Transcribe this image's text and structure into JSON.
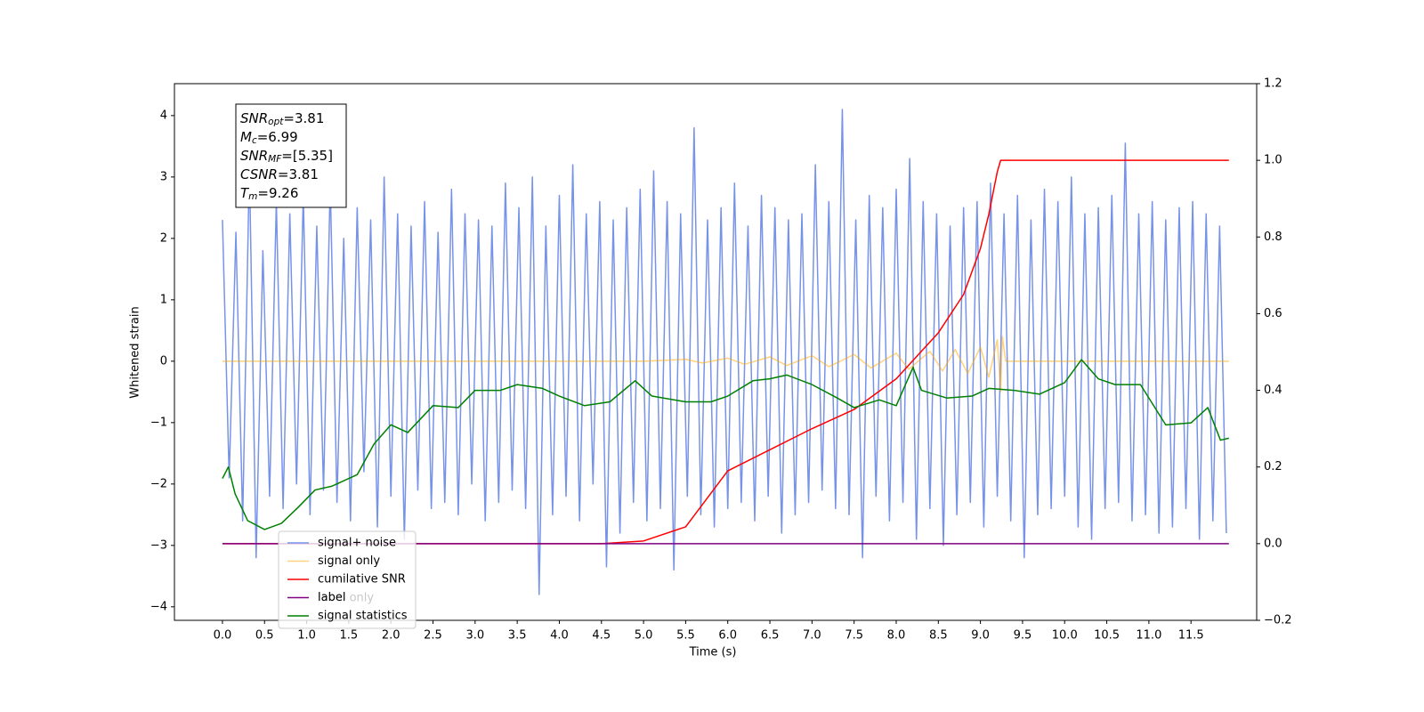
{
  "chart_data": {
    "type": "line",
    "xlabel": "Time (s)",
    "ylabel": "Whitened strain",
    "xlim": [
      -0.57,
      12.28
    ],
    "ylim": [
      -4.22,
      4.52
    ],
    "y2lim": [
      -0.2,
      1.2
    ],
    "xticks": [
      {
        "value": 0,
        "label": "0.0"
      },
      0.5,
      {
        "value": 1,
        "label": "1.0"
      },
      1.5,
      {
        "value": 2,
        "label": "2.0"
      },
      2.5,
      {
        "value": 3,
        "label": "3.0"
      },
      3.5,
      {
        "value": 4,
        "label": "4.0"
      },
      4.5,
      {
        "value": 5,
        "label": "5.0"
      },
      5.5,
      {
        "value": 6,
        "label": "6.0"
      },
      6.5,
      {
        "value": 7,
        "label": "7.0"
      },
      7.5,
      {
        "value": 8,
        "label": "8.0"
      },
      8.5,
      {
        "value": 9,
        "label": "9.0"
      },
      9.5,
      {
        "value": 10,
        "label": "10.0"
      },
      10.5,
      {
        "value": 11,
        "label": "11.0"
      },
      11.5
    ],
    "yticks": [
      {
        "value": -4,
        "label": "−4"
      },
      {
        "value": -3,
        "label": "−3"
      },
      {
        "value": -2,
        "label": "−2"
      },
      {
        "value": -1,
        "label": "−1"
      },
      0,
      1,
      2,
      3,
      4
    ],
    "y2ticks": [
      {
        "value": -0.2,
        "label": "−0.2"
      },
      {
        "value": 0,
        "label": "0.0"
      },
      0.2,
      0.4,
      0.6,
      0.8,
      {
        "value": 1,
        "label": "1.0"
      },
      1.2
    ],
    "series": [
      {
        "name": "signal+ noise",
        "color": "#7793e8",
        "x": [
          0,
          0.08,
          0.16,
          0.24,
          0.32,
          0.4,
          0.48,
          0.56,
          0.64,
          0.72,
          0.8,
          0.88,
          0.96,
          1.04,
          1.12,
          1.2,
          1.28,
          1.36,
          1.44,
          1.52,
          1.6,
          1.68,
          1.76,
          1.84,
          1.92,
          2,
          2.08,
          2.16,
          2.24,
          2.32,
          2.4,
          2.48,
          2.56,
          2.64,
          2.72,
          2.8,
          2.88,
          2.96,
          3.04,
          3.12,
          3.2,
          3.28,
          3.36,
          3.44,
          3.52,
          3.6,
          3.68,
          3.76,
          3.84,
          3.92,
          4,
          4.08,
          4.16,
          4.24,
          4.32,
          4.4,
          4.48,
          4.56,
          4.64,
          4.72,
          4.8,
          4.88,
          4.96,
          5.04,
          5.12,
          5.2,
          5.28,
          5.36,
          5.44,
          5.52,
          5.6,
          5.68,
          5.76,
          5.84,
          5.92,
          6,
          6.08,
          6.16,
          6.24,
          6.32,
          6.4,
          6.48,
          6.56,
          6.64,
          6.72,
          6.8,
          6.88,
          6.96,
          7.04,
          7.12,
          7.2,
          7.28,
          7.36,
          7.44,
          7.52,
          7.6,
          7.68,
          7.76,
          7.84,
          7.92,
          8,
          8.08,
          8.16,
          8.24,
          8.32,
          8.4,
          8.48,
          8.56,
          8.64,
          8.72,
          8.8,
          8.88,
          8.96,
          9.04,
          9.12,
          9.2,
          9.28,
          9.36,
          9.44,
          9.52,
          9.6,
          9.68,
          9.76,
          9.84,
          9.92,
          10,
          10.08,
          10.16,
          10.24,
          10.32,
          10.4,
          10.48,
          10.56,
          10.64,
          10.72,
          10.8,
          10.88,
          10.96,
          11.04,
          11.12,
          11.2,
          11.28,
          11.36,
          11.44,
          11.52,
          11.6,
          11.68,
          11.76,
          11.84,
          11.92
        ],
        "values": [
          2.3,
          -1.9,
          2.1,
          -2.6,
          3.2,
          -3.2,
          1.8,
          -2.2,
          2.6,
          -2.4,
          2.4,
          -2.0,
          2.7,
          -2.5,
          2.2,
          -2.1,
          2.9,
          -2.3,
          2.0,
          -2.6,
          2.5,
          -1.8,
          2.3,
          -2.7,
          3.0,
          -2.2,
          2.4,
          -2.9,
          2.2,
          -2.1,
          2.6,
          -2.4,
          2.1,
          -2.3,
          2.8,
          -2.5,
          2.4,
          -2.0,
          2.3,
          -2.6,
          2.2,
          -2.3,
          2.9,
          -2.1,
          2.5,
          -2.4,
          3.0,
          -3.8,
          2.2,
          -2.5,
          2.7,
          -2.2,
          3.2,
          -2.6,
          2.4,
          -2.0,
          2.6,
          -3.35,
          2.3,
          -2.8,
          2.5,
          -2.3,
          2.8,
          -2.6,
          3.1,
          -2.4,
          2.6,
          -3.4,
          2.4,
          -2.2,
          3.8,
          -2.5,
          2.3,
          -2.7,
          2.5,
          -2.4,
          2.9,
          -2.3,
          2.2,
          -2.6,
          2.7,
          -2.2,
          2.5,
          -2.8,
          2.3,
          -2.5,
          2.4,
          -2.3,
          3.2,
          -2.1,
          2.6,
          -2.4,
          4.1,
          -2.5,
          2.3,
          -3.2,
          2.7,
          -2.2,
          2.5,
          -2.6,
          2.8,
          -2.3,
          3.3,
          -2.9,
          2.6,
          -2.4,
          2.4,
          -3.0,
          2.2,
          -2.5,
          2.5,
          -2.3,
          2.6,
          -2.7,
          2.9,
          -2.2,
          2.4,
          -2.6,
          2.7,
          -3.2,
          2.3,
          -2.5,
          2.8,
          -2.4,
          2.6,
          -2.2,
          3.0,
          -2.7,
          2.4,
          -2.9,
          2.5,
          -2.4,
          2.7,
          -2.3,
          3.55,
          -2.6,
          2.4,
          -2.5,
          2.6,
          -2.8,
          2.3,
          -2.7,
          2.5,
          -2.4,
          2.6,
          -2.9,
          2.4,
          -2.6,
          2.2,
          -2.8
        ]
      },
      {
        "name": "signal only",
        "color": "#ffa500",
        "alpha": 0.5,
        "x": [
          0,
          5.0,
          5.5,
          5.7,
          6.0,
          6.2,
          6.5,
          6.7,
          7.0,
          7.2,
          7.5,
          7.7,
          8.0,
          8.15,
          8.4,
          8.55,
          8.7,
          8.85,
          9.0,
          9.1,
          9.2,
          9.24,
          9.26,
          9.3,
          11.95
        ],
        "values": [
          0,
          0,
          0.03,
          -0.03,
          0.05,
          -0.05,
          0.07,
          -0.07,
          0.09,
          -0.09,
          0.11,
          -0.11,
          0.13,
          -0.13,
          0.16,
          -0.16,
          0.19,
          -0.2,
          0.23,
          -0.26,
          0.35,
          -0.5,
          0.4,
          0,
          0
        ]
      },
      {
        "name": "cumilative SNR",
        "color": "#ff0000",
        "axis": "y2",
        "x": [
          0,
          4.5,
          5.0,
          5.5,
          6.0,
          6.5,
          7.0,
          7.5,
          8.0,
          8.5,
          8.8,
          9.0,
          9.1,
          9.2,
          9.24,
          11.95
        ],
        "values": [
          0,
          0,
          0.007,
          0.044,
          0.19,
          0.245,
          0.3,
          0.35,
          0.43,
          0.55,
          0.65,
          0.77,
          0.86,
          0.97,
          1.0,
          1.0
        ]
      },
      {
        "name": "label",
        "color": "#800080",
        "axis": "y2",
        "x": [
          0,
          11.95
        ],
        "values": [
          0,
          0
        ]
      },
      {
        "name": "signal statistics",
        "color": "#008000",
        "axis": "y2",
        "x": [
          0,
          0.07,
          0.15,
          0.3,
          0.5,
          0.7,
          0.9,
          1.1,
          1.3,
          1.6,
          1.8,
          2.0,
          2.2,
          2.5,
          2.8,
          3.0,
          3.3,
          3.5,
          3.8,
          4.0,
          4.3,
          4.6,
          4.9,
          5.1,
          5.5,
          5.8,
          6.0,
          6.3,
          6.5,
          6.7,
          7.0,
          7.3,
          7.5,
          7.8,
          8.0,
          8.2,
          8.3,
          8.6,
          8.9,
          9.1,
          9.4,
          9.7,
          10.0,
          10.2,
          10.4,
          10.6,
          10.9,
          11.2,
          11.5,
          11.7,
          11.85,
          11.95
        ],
        "values": [
          0.17,
          0.2,
          0.13,
          0.06,
          0.037,
          0.053,
          0.095,
          0.14,
          0.15,
          0.18,
          0.26,
          0.31,
          0.29,
          0.36,
          0.355,
          0.4,
          0.4,
          0.415,
          0.405,
          0.385,
          0.36,
          0.37,
          0.425,
          0.385,
          0.37,
          0.37,
          0.385,
          0.425,
          0.43,
          0.44,
          0.415,
          0.38,
          0.355,
          0.375,
          0.36,
          0.46,
          0.4,
          0.38,
          0.385,
          0.405,
          0.4,
          0.39,
          0.42,
          0.48,
          0.43,
          0.415,
          0.415,
          0.31,
          0.315,
          0.355,
          0.27,
          0.275
        ]
      }
    ],
    "legend_ghost_text": "label only",
    "annotation": [
      {
        "symbol": "SNR",
        "subscript": "opt",
        "rest": "=3.81"
      },
      {
        "symbol": "M",
        "subscript": "c",
        "rest": "=6.99"
      },
      {
        "symbol": "SNR",
        "subscript": "MF",
        "rest": "=[5.35]"
      },
      {
        "symbol": "CSNR",
        "subscript": "",
        "rest": "=3.81"
      },
      {
        "symbol": "T",
        "subscript": "m",
        "rest": "=9.26"
      }
    ]
  }
}
